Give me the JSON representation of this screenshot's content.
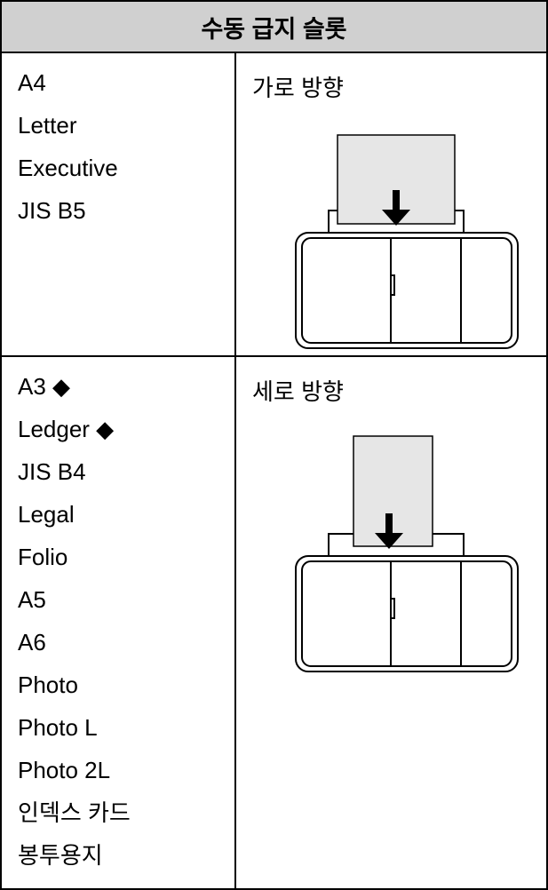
{
  "header": {
    "title": "수동 급지 슬롯"
  },
  "rows": [
    {
      "sizes": [
        "A4",
        "Letter",
        "Executive",
        "JIS B5"
      ],
      "orientation": "가로 방향"
    },
    {
      "sizes": [
        "A3 ◆",
        "Ledger ◆",
        "JIS B4",
        "Legal",
        "Folio",
        "A5",
        "A6",
        "Photo",
        "Photo L",
        "Photo 2L",
        "인덱스 카드",
        "봉투용지"
      ],
      "orientation": "세로 방향"
    }
  ]
}
